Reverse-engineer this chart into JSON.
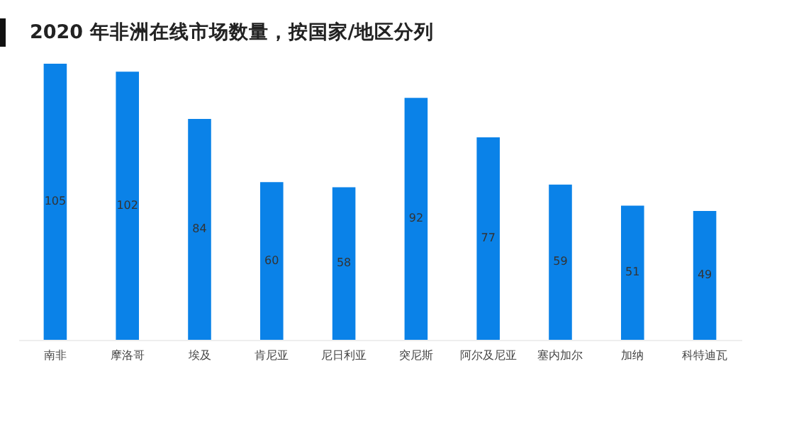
{
  "chart_data": {
    "type": "bar",
    "title": "2020 年非洲在线市场数量，按国家/地区分列",
    "categories": [
      "南非",
      "摩洛哥",
      "埃及",
      "肯尼亚",
      "尼日利亚",
      "突尼斯",
      "阿尔及尼亚",
      "塞内加尔",
      "加纳",
      "科特迪瓦"
    ],
    "values": [
      105,
      102,
      84,
      60,
      58,
      92,
      77,
      59,
      51,
      49
    ],
    "color": "#0a82e8",
    "data_labels": true
  }
}
